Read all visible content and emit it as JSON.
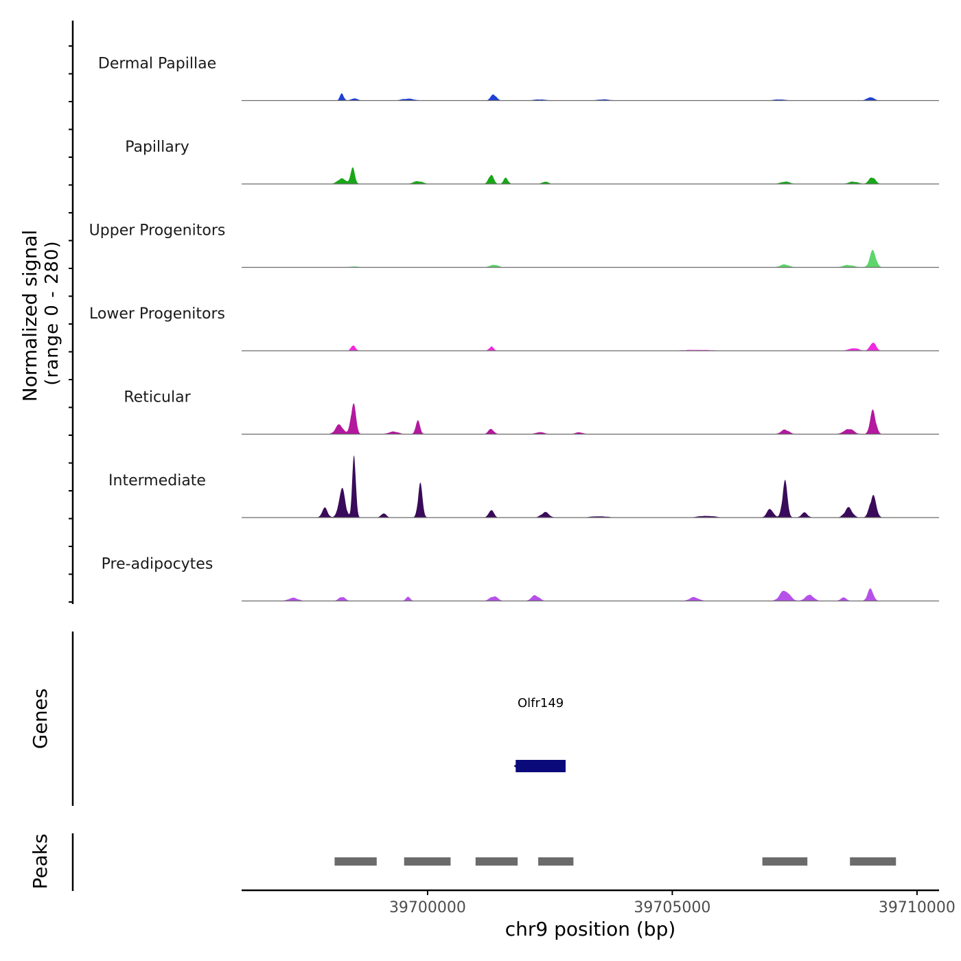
{
  "chart_data": {
    "type": "area",
    "chromosome": "chr9",
    "xlabel": "chr9 position (bp)",
    "ylabel_line1": "Normalized signal",
    "ylabel_line2": "(range 0 - 280)",
    "y_range": [
      0,
      280
    ],
    "x_range": [
      39696200,
      39710450
    ],
    "x_ticks": [
      {
        "value": 39700000,
        "label": "39700000"
      },
      {
        "value": 39705000,
        "label": "39705000"
      },
      {
        "value": 39710000,
        "label": "39710000"
      }
    ],
    "tracks": [
      {
        "name": "Dermal Papillae",
        "color": "#1f3fd6",
        "peaks": [
          {
            "center": 39698250,
            "height": 30,
            "width": 120
          },
          {
            "center": 39698500,
            "height": 10,
            "width": 200
          },
          {
            "center": 39699600,
            "height": 8,
            "width": 400
          },
          {
            "center": 39701350,
            "height": 26,
            "width": 180
          },
          {
            "center": 39702300,
            "height": 5,
            "width": 400
          },
          {
            "center": 39703600,
            "height": 5,
            "width": 400
          },
          {
            "center": 39707200,
            "height": 5,
            "width": 400
          },
          {
            "center": 39709050,
            "height": 16,
            "width": 220
          }
        ]
      },
      {
        "name": "Papillary",
        "color": "#1aa619",
        "peaks": [
          {
            "center": 39698470,
            "height": 64,
            "width": 140
          },
          {
            "center": 39698250,
            "height": 26,
            "width": 250
          },
          {
            "center": 39699800,
            "height": 12,
            "width": 300
          },
          {
            "center": 39701300,
            "height": 42,
            "width": 160
          },
          {
            "center": 39701600,
            "height": 26,
            "width": 140
          },
          {
            "center": 39702400,
            "height": 10,
            "width": 200
          },
          {
            "center": 39707300,
            "height": 10,
            "width": 300
          },
          {
            "center": 39709080,
            "height": 30,
            "width": 200
          },
          {
            "center": 39708700,
            "height": 10,
            "width": 300
          }
        ]
      },
      {
        "name": "Upper Progenitors",
        "color": "#5dd66b",
        "peaks": [
          {
            "center": 39701350,
            "height": 12,
            "width": 260
          },
          {
            "center": 39707300,
            "height": 12,
            "width": 300
          },
          {
            "center": 39709100,
            "height": 70,
            "width": 200
          },
          {
            "center": 39708600,
            "height": 10,
            "width": 350
          },
          {
            "center": 39698500,
            "height": 4,
            "width": 300
          }
        ]
      },
      {
        "name": "Lower Progenitors",
        "color": "#f02ae0",
        "peaks": [
          {
            "center": 39698480,
            "height": 26,
            "width": 140
          },
          {
            "center": 39701300,
            "height": 18,
            "width": 140
          },
          {
            "center": 39709100,
            "height": 40,
            "width": 180
          },
          {
            "center": 39708700,
            "height": 12,
            "width": 300
          },
          {
            "center": 39705500,
            "height": 4,
            "width": 900
          }
        ]
      },
      {
        "name": "Reticular",
        "color": "#b3189e",
        "peaks": [
          {
            "center": 39698480,
            "height": 130,
            "width": 160
          },
          {
            "center": 39698200,
            "height": 40,
            "width": 250
          },
          {
            "center": 39699800,
            "height": 55,
            "width": 140
          },
          {
            "center": 39699300,
            "height": 12,
            "width": 300
          },
          {
            "center": 39701300,
            "height": 22,
            "width": 180
          },
          {
            "center": 39702300,
            "height": 10,
            "width": 250
          },
          {
            "center": 39703100,
            "height": 8,
            "width": 250
          },
          {
            "center": 39707300,
            "height": 20,
            "width": 250
          },
          {
            "center": 39709100,
            "height": 100,
            "width": 180
          },
          {
            "center": 39708600,
            "height": 24,
            "width": 300
          }
        ]
      },
      {
        "name": "Intermediate",
        "color": "#3a0b5a",
        "peaks": [
          {
            "center": 39698500,
            "height": 280,
            "width": 110
          },
          {
            "center": 39698250,
            "height": 130,
            "width": 200
          },
          {
            "center": 39697900,
            "height": 40,
            "width": 180
          },
          {
            "center": 39699850,
            "height": 150,
            "width": 140
          },
          {
            "center": 39699100,
            "height": 20,
            "width": 160
          },
          {
            "center": 39701300,
            "height": 36,
            "width": 160
          },
          {
            "center": 39702400,
            "height": 22,
            "width": 250
          },
          {
            "center": 39703500,
            "height": 6,
            "width": 500
          },
          {
            "center": 39705700,
            "height": 8,
            "width": 500
          },
          {
            "center": 39707300,
            "height": 150,
            "width": 160
          },
          {
            "center": 39707000,
            "height": 40,
            "width": 200
          },
          {
            "center": 39707700,
            "height": 20,
            "width": 200
          },
          {
            "center": 39709100,
            "height": 95,
            "width": 200
          },
          {
            "center": 39708600,
            "height": 40,
            "width": 250
          }
        ]
      },
      {
        "name": "Pre-adipocytes",
        "color": "#b551e8",
        "peaks": [
          {
            "center": 39697250,
            "height": 14,
            "width": 300
          },
          {
            "center": 39698250,
            "height": 18,
            "width": 200
          },
          {
            "center": 39699600,
            "height": 16,
            "width": 150
          },
          {
            "center": 39701350,
            "height": 20,
            "width": 250
          },
          {
            "center": 39702200,
            "height": 24,
            "width": 250
          },
          {
            "center": 39705450,
            "height": 16,
            "width": 300
          },
          {
            "center": 39707300,
            "height": 48,
            "width": 300
          },
          {
            "center": 39707800,
            "height": 30,
            "width": 250
          },
          {
            "center": 39709050,
            "height": 56,
            "width": 180
          },
          {
            "center": 39708500,
            "height": 14,
            "width": 200
          }
        ]
      }
    ],
    "genes_label": "Genes",
    "genes": [
      {
        "name": "Olfr149",
        "start": 39701800,
        "end": 39702820,
        "strand": "-",
        "color": "#0a0a7a"
      }
    ],
    "peaks_label": "Peaks",
    "peak_color": "#6b6b6b",
    "peak_regions": [
      {
        "start": 39698100,
        "end": 39698960
      },
      {
        "start": 39699520,
        "end": 39700470
      },
      {
        "start": 39700980,
        "end": 39701840
      },
      {
        "start": 39702260,
        "end": 39702980
      },
      {
        "start": 39706840,
        "end": 39707760
      },
      {
        "start": 39708630,
        "end": 39709570
      }
    ]
  }
}
